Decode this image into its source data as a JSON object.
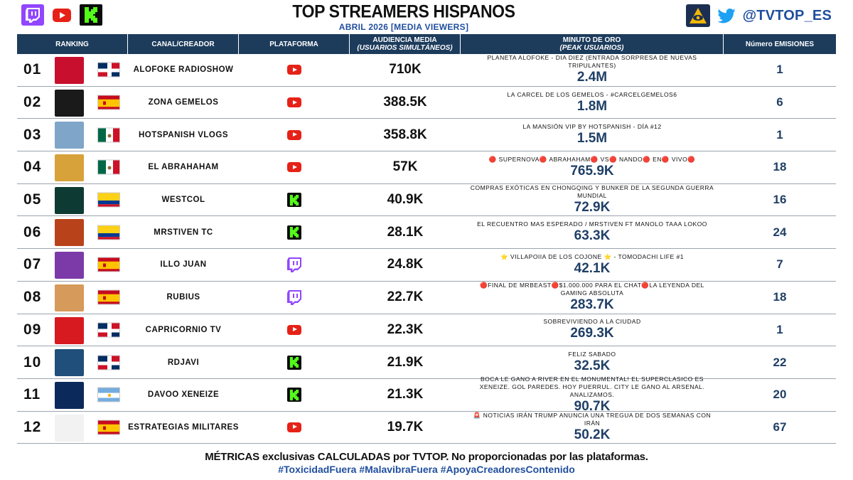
{
  "header": {
    "title": "TOP STREAMERS HISPANOS",
    "subtitle": "ABRIL 2026 [MEDIA VIEWERS]",
    "handle": "@TVTOP_ES",
    "platform_logos": [
      "twitch-icon",
      "youtube-icon",
      "kick-icon"
    ]
  },
  "columns": {
    "ranking": "RANKING",
    "canal": "CANAL/CREADOR",
    "plataforma": "PLATAFORMA",
    "audiencia": "AUDIENCIA MEDIA",
    "audiencia_sub": "(USUARIOS SIMULTÁNEOS)",
    "minuto": "MINUTO DE ORO",
    "minuto_sub": "(PEAK USUARIOS)",
    "emisiones": "Número EMISIONES"
  },
  "rows": [
    {
      "rank": "01",
      "flag": "dominican-republic",
      "channel": "ALOFOKE RADIOSHOW",
      "platform": "youtube",
      "audience": "710K",
      "top_stream": "PLANETA ALOFOKE - DIA DIEZ (ENTRADA SORPRESA DE NUEVAS TRIPULANTES)",
      "peak": "2.4M",
      "emissions": "1",
      "avatar_color": "#c8102e"
    },
    {
      "rank": "02",
      "flag": "spain",
      "channel": "ZONA GEMELOS",
      "platform": "youtube",
      "audience": "388.5K",
      "top_stream": "LA CARCEL DE LOS GEMELOS - #CARCELGEMELOS6",
      "peak": "1.8M",
      "emissions": "6",
      "avatar_color": "#1a1a1a"
    },
    {
      "rank": "03",
      "flag": "mexico",
      "channel": "HOTSPANISH VLOGS",
      "platform": "youtube",
      "audience": "358.8K",
      "top_stream": "LA MANSIÓN VIP BY HOTSPANISH - DÍA #12",
      "peak": "1.5M",
      "emissions": "1",
      "avatar_color": "#7fa6c9"
    },
    {
      "rank": "04",
      "flag": "mexico",
      "channel": "EL ABRAHAHAM",
      "platform": "youtube",
      "audience": "57K",
      "top_stream": "🔴 SUPERNOVA🔴 ABRAHAHAM🔴 VS🔴 NANDO🔴 EN🔴 VIVO🔴",
      "peak": "765.9K",
      "emissions": "18",
      "avatar_color": "#d8a23a"
    },
    {
      "rank": "05",
      "flag": "colombia",
      "channel": "WESTCOL",
      "platform": "kick",
      "audience": "40.9K",
      "top_stream": "COMPRAS EXÓTICAS EN CHONGQING Y BUNKER DE LA SEGUNDA GUERRA MUNDIAL",
      "peak": "72.9K",
      "emissions": "16",
      "avatar_color": "#0d3b33"
    },
    {
      "rank": "06",
      "flag": "colombia",
      "channel": "MRSTIVEN TC",
      "platform": "kick",
      "audience": "28.1K",
      "top_stream": "EL RECUENTRO MAS ESPERADO / MRSTIVEN FT MANOLO TAAA LOKOO",
      "peak": "63.3K",
      "emissions": "24",
      "avatar_color": "#b8431a"
    },
    {
      "rank": "07",
      "flag": "spain",
      "channel": "ILLO JUAN",
      "platform": "twitch",
      "audience": "24.8K",
      "top_stream": "⭐ VILLAPOIIA DE LOS COJONE ⭐ - TOMODACHI LIFE #1",
      "peak": "42.1K",
      "emissions": "7",
      "avatar_color": "#7c3aa8"
    },
    {
      "rank": "08",
      "flag": "spain",
      "channel": "RUBIUS",
      "platform": "twitch",
      "audience": "22.7K",
      "top_stream": "🔴FINAL DE MRBEAST🔴$1.000.000 PARA EL CHAT🔴LA LEYENDA DEL GAMING ABSOLUTA",
      "peak": "283.7K",
      "emissions": "18",
      "avatar_color": "#d69a5a"
    },
    {
      "rank": "09",
      "flag": "dominican-republic",
      "channel": "CAPRICORNIO TV",
      "platform": "youtube",
      "audience": "22.3K",
      "top_stream": "SOBREVIVIENDO A LA CIUDAD",
      "peak": "269.3K",
      "emissions": "1",
      "avatar_color": "#d71920"
    },
    {
      "rank": "10",
      "flag": "dominican-republic",
      "channel": "RDJAVI",
      "platform": "kick",
      "audience": "21.9K",
      "top_stream": "FELIZ SABADO",
      "peak": "32.5K",
      "emissions": "22",
      "avatar_color": "#1f4f7a"
    },
    {
      "rank": "11",
      "flag": "argentina",
      "channel": "DAVOO XENEIZE",
      "platform": "kick",
      "audience": "21.3K",
      "top_stream": "BOCA LE GANO A RIVER EN EL MONUMENTAL! EL SUPERCLASICO ES XENEIZE. GOL PAREDES. HOY PUERRUL. CITY LE GANO AL ARSENAL. ANALIZAMOS.",
      "peak": "90.7K",
      "emissions": "20",
      "avatar_color": "#0b2a5b"
    },
    {
      "rank": "12",
      "flag": "spain",
      "channel": "ESTRATEGIAS MILITARES",
      "platform": "youtube",
      "audience": "19.7K",
      "top_stream": "🚨 NOTICIAS IRÁN TRUMP ANUNCIA UNA TREGUA DE DOS SEMANAS CON IRÁN",
      "peak": "50.2K",
      "emissions": "67",
      "avatar_color": "#f2f2f2"
    }
  ],
  "footer": {
    "line1": "MÉTRICAS exclusivas CALCULADAS por TVTOP. No proporcionadas por las plataformas.",
    "line2": "#ToxicidadFuera #MalavibraFuera #ApoyaCreadoresContenido"
  }
}
